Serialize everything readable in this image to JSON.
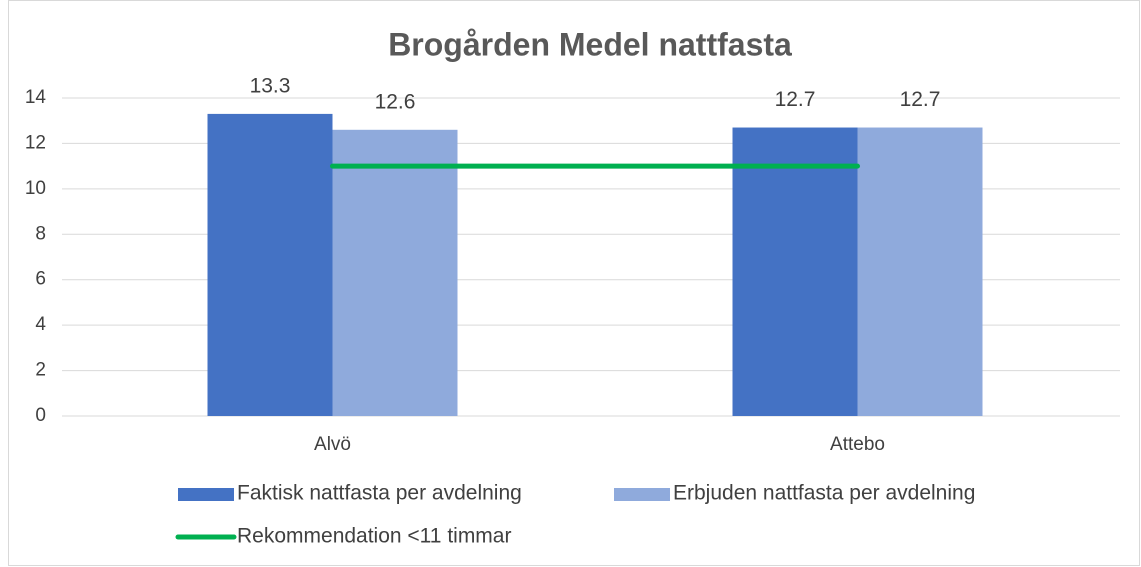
{
  "chart_data": {
    "type": "bar",
    "title": "Brogården Medel nattfasta",
    "categories": [
      "Alvö",
      "Attebo"
    ],
    "series": [
      {
        "name": "Faktisk nattfasta per avdelning",
        "color": "#4472c4",
        "values": [
          13.3,
          12.7
        ]
      },
      {
        "name": "Erbjuden nattfasta per avdelning",
        "color": "#8faadc",
        "values": [
          12.6,
          12.7
        ]
      },
      {
        "name": "Rekommendation <11 timmar",
        "color": "#00b050",
        "type": "line",
        "values": [
          11,
          11
        ]
      }
    ],
    "ylim": [
      0,
      14
    ],
    "yticks": [
      0,
      2,
      4,
      6,
      8,
      10,
      12,
      14
    ],
    "grid": true,
    "legend": "bottom"
  }
}
